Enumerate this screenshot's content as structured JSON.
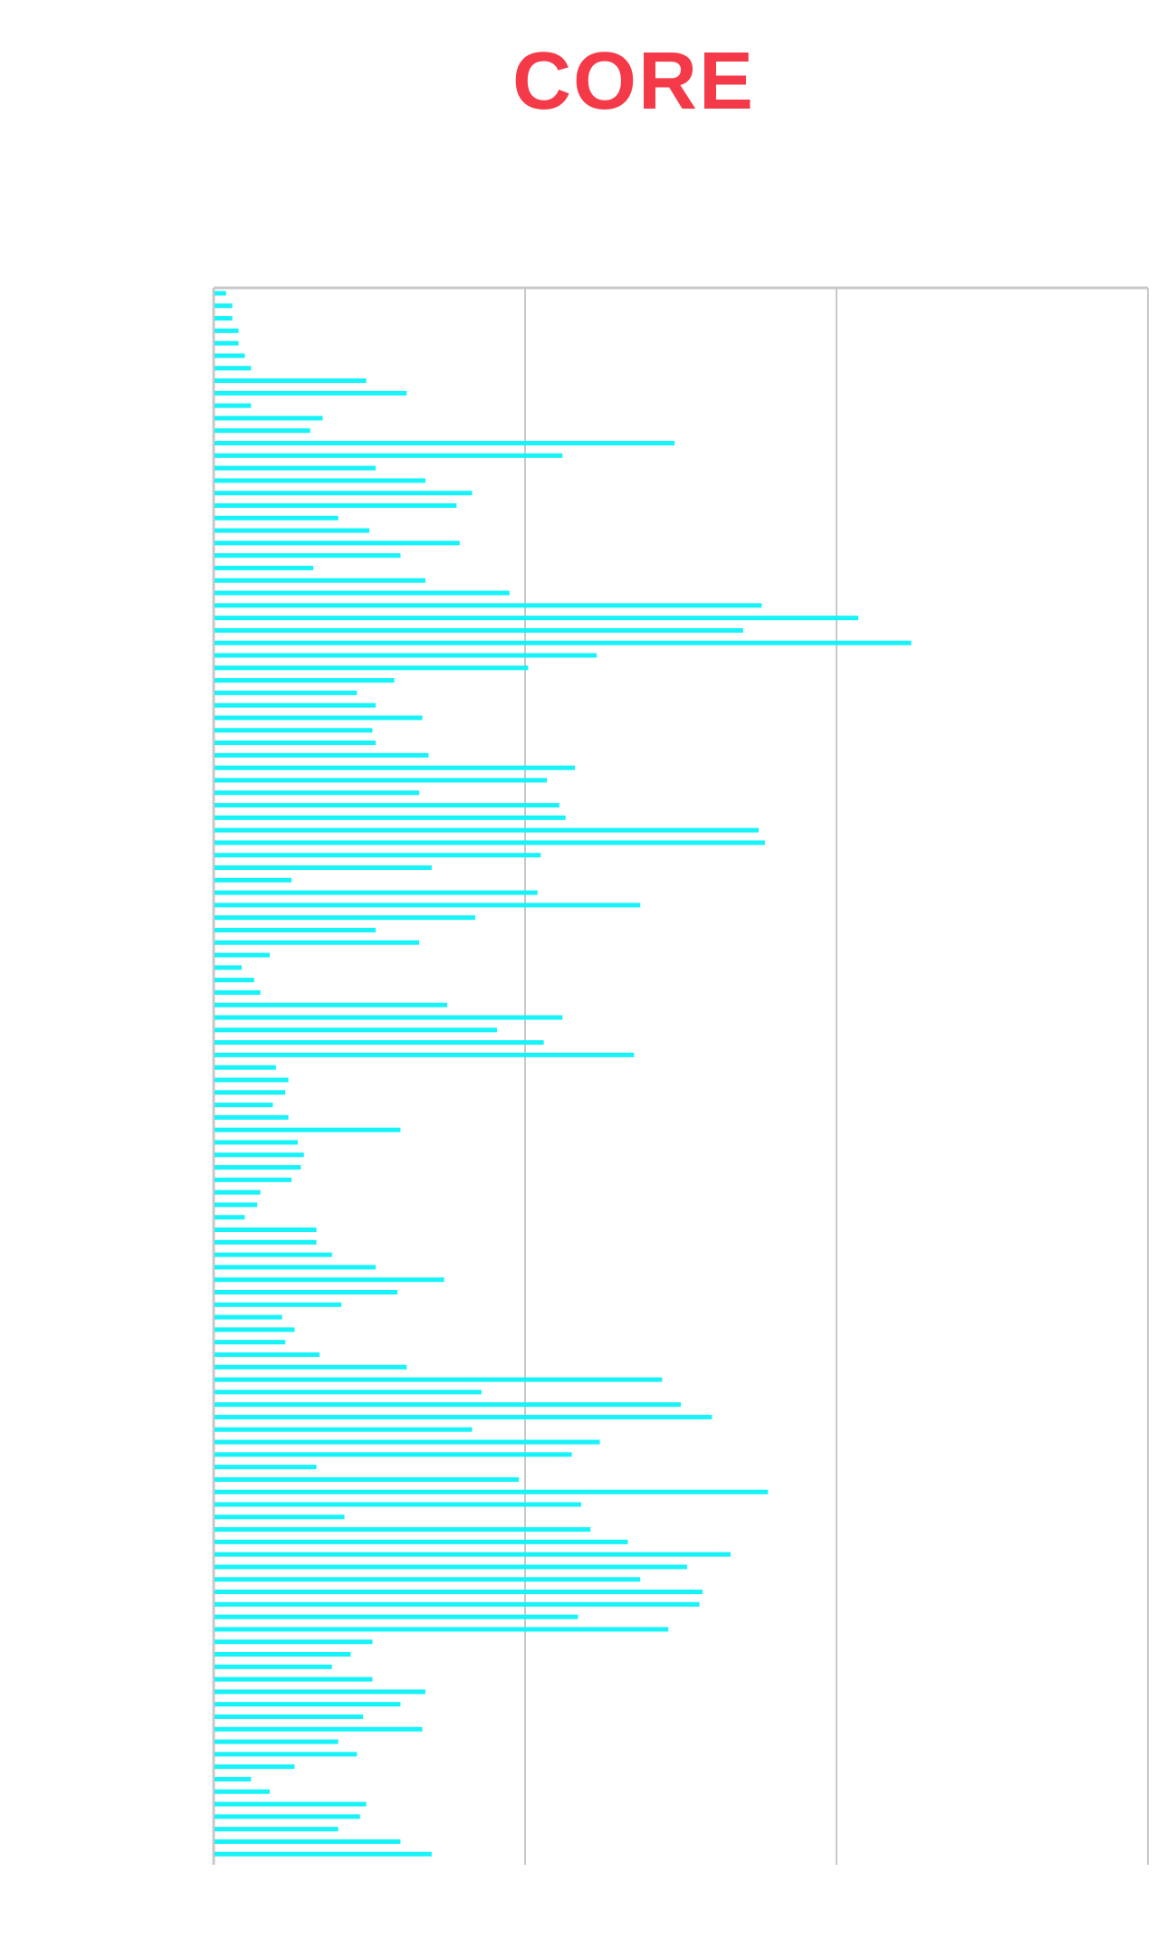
{
  "chart_data": {
    "type": "bar",
    "orientation": "horizontal",
    "title": "CORE",
    "xlabel": "",
    "ylabel": "",
    "xlim": [
      0,
      300
    ],
    "gridlines_x": [
      0,
      100,
      200,
      300
    ],
    "grid": true,
    "legend": "none",
    "values": [
      4,
      6,
      6,
      8,
      8,
      10,
      12,
      49,
      62,
      12,
      35,
      31,
      148,
      112,
      52,
      68,
      83,
      78,
      40,
      50,
      79,
      60,
      32,
      68,
      95,
      176,
      207,
      170,
      224,
      123,
      101,
      58,
      46,
      52,
      67,
      51,
      52,
      69,
      116,
      107,
      66,
      111,
      113,
      175,
      177,
      105,
      70,
      25,
      104,
      137,
      84,
      52,
      66,
      18,
      9,
      13,
      15,
      75,
      112,
      91,
      106,
      135,
      20,
      24,
      23,
      19,
      24,
      60,
      27,
      29,
      28,
      25,
      15,
      14,
      10,
      33,
      33,
      38,
      52,
      74,
      59,
      41,
      22,
      26,
      23,
      34,
      62,
      144,
      86,
      150,
      160,
      83,
      124,
      115,
      33,
      98,
      178,
      118,
      42,
      121,
      133,
      166,
      152,
      137,
      157,
      156,
      117,
      146,
      51,
      44,
      38,
      51,
      68,
      60,
      48,
      67,
      40,
      46,
      26,
      12,
      18,
      49,
      47,
      40,
      60,
      70
    ]
  },
  "colors": {
    "title": "#f43a48",
    "bar": "#16f3f9",
    "grid": "#c8c8c8"
  }
}
